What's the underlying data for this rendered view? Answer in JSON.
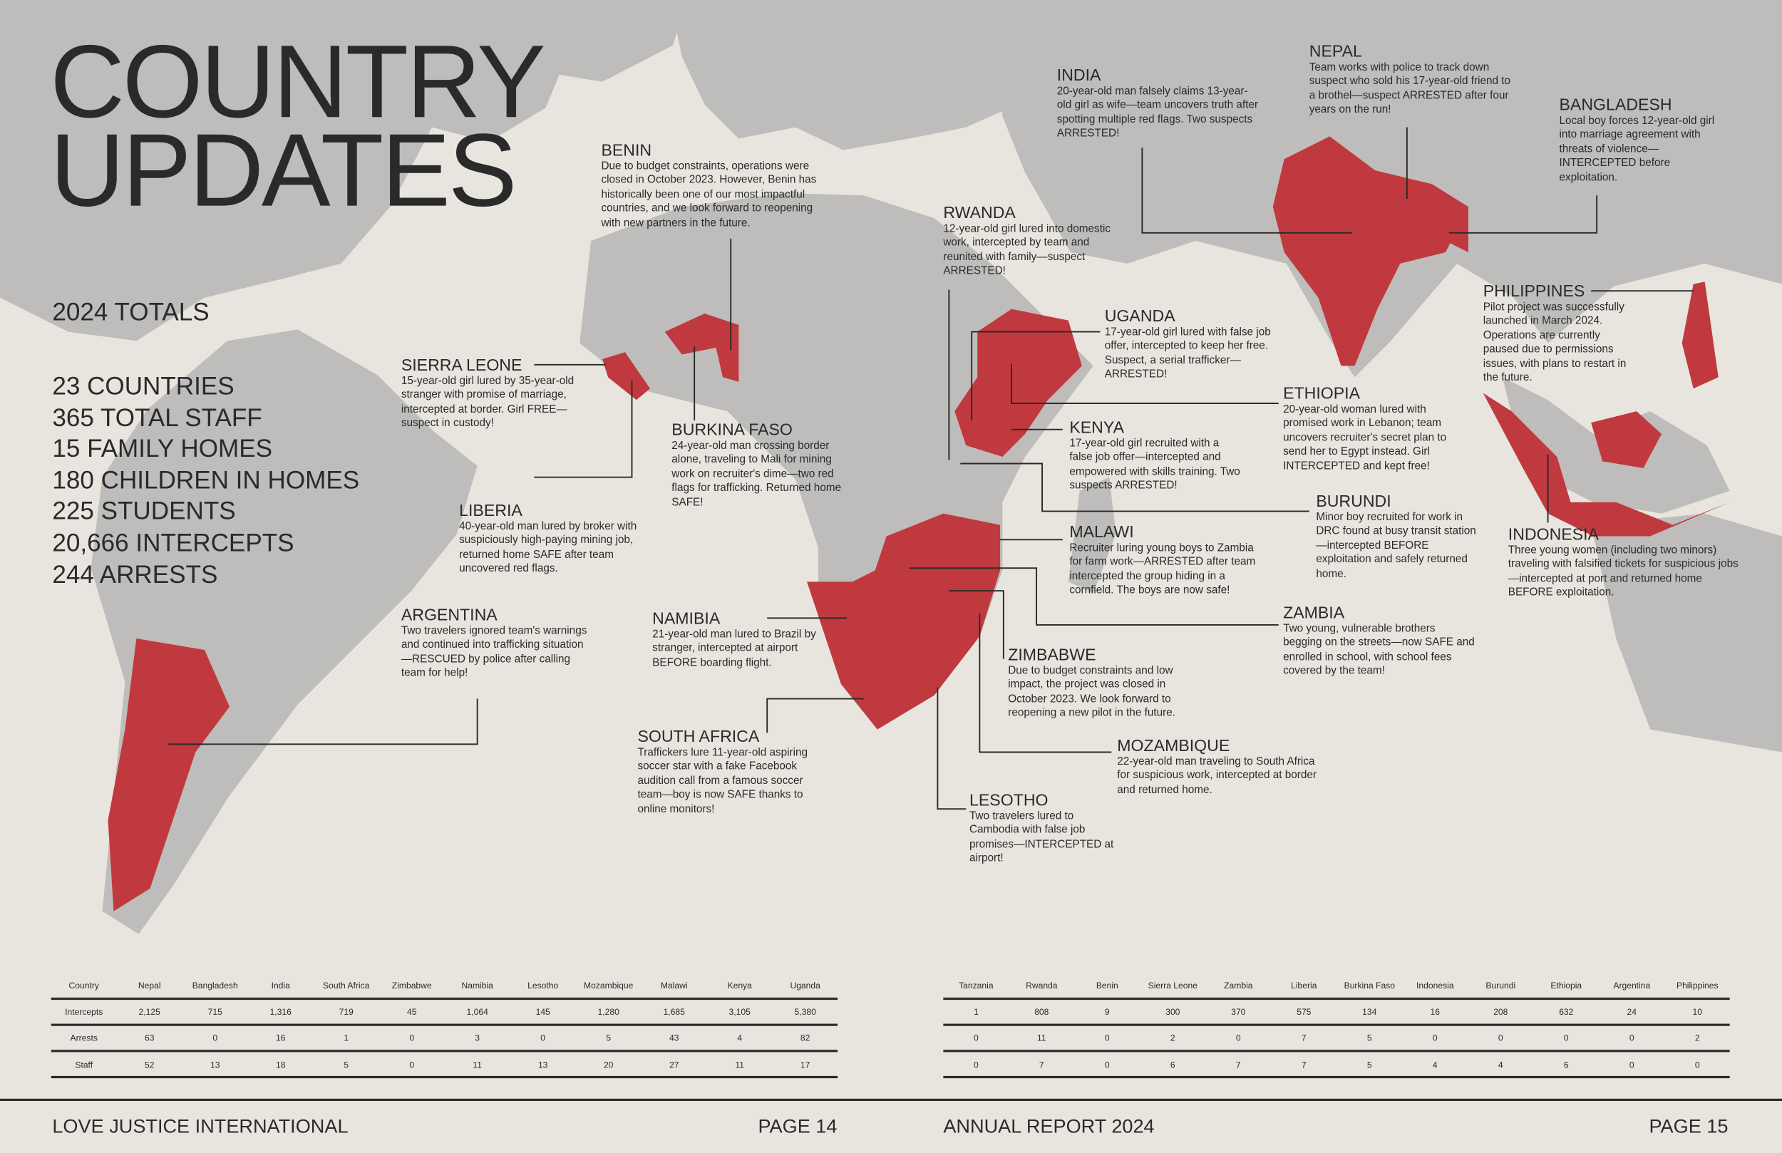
{
  "title_lines": [
    "COUNTRY",
    "UPDATES"
  ],
  "totals": {
    "heading": "2024 TOTALS",
    "items": [
      "23 COUNTRIES",
      "365 TOTAL STAFF",
      "15 FAMILY HOMES",
      "180 CHILDREN IN HOMES",
      "225 STUDENTS",
      "20,666 INTERCEPTS",
      "244 ARRESTS"
    ]
  },
  "callouts": [
    {
      "name": "BENIN",
      "text": "Due to budget constraints, operations were closed in October 2023. However, Benin has historically been one of our most impactful countries, and we look forward to reopening with new partners in the future."
    },
    {
      "name": "INDIA",
      "text": "20-year-old man falsely claims 13-year-old girl as wife—team uncovers truth after spotting multiple red flags. Two suspects ARRESTED!"
    },
    {
      "name": "NEPAL",
      "text": "Team works with police to track down suspect who sold his 17-year-old friend to a brothel—suspect ARRESTED after four years on the run!"
    },
    {
      "name": "BANGLADESH",
      "text": "Local boy forces 12-year-old girl into marriage agreement with threats of violence—INTERCEPTED before exploitation."
    },
    {
      "name": "RWANDA",
      "text": "12-year-old girl lured into domestic work, intercepted by team and reunited with family—suspect ARRESTED!"
    },
    {
      "name": "UGANDA",
      "text": "17-year-old girl lured with false job offer, intercepted to keep her free. Suspect, a serial trafficker—ARRESTED!"
    },
    {
      "name": "PHILIPPINES",
      "text": "Pilot project was successfully launched in March 2024. Operations are currently paused due to permissions issues, with plans to restart in the future."
    },
    {
      "name": "SIERRA LEONE",
      "text": "15-year-old girl lured by 35-year-old stranger with promise of marriage, intercepted at border. Girl FREE—suspect in custody!"
    },
    {
      "name": "ETHIOPIA",
      "text": "20-year-old woman lured with promised work in Lebanon; team uncovers recruiter's secret plan to send her to Egypt instead. Girl INTERCEPTED and kept free!"
    },
    {
      "name": "KENYA",
      "text": "17-year-old girl recruited with a false job offer—intercepted and empowered with skills training. Two suspects ARRESTED!"
    },
    {
      "name": "BURKINA FASO",
      "text": "24-year-old man crossing border alone, traveling to Mali for mining work on recruiter's dime—two red flags for trafficking. Returned home SAFE!"
    },
    {
      "name": "LIBERIA",
      "text": "40-year-old man lured by broker with suspiciously high-paying mining job, returned home SAFE after team uncovered red flags."
    },
    {
      "name": "BURUNDI",
      "text": "Minor boy recruited for work in DRC found at busy transit station—intercepted BEFORE exploitation and safely returned home."
    },
    {
      "name": "MALAWI",
      "text": "Recruiter luring young boys to Zambia for farm work—ARRESTED after team intercepted the group hiding in a cornfield. The boys are now safe!"
    },
    {
      "name": "INDONESIA",
      "text": "Three young women (including two minors) traveling with falsified tickets for suspicious jobs—intercepted at port and returned home BEFORE exploitation."
    },
    {
      "name": "ARGENTINA",
      "text": "Two travelers ignored team's warnings and continued into trafficking situation—RESCUED by police after calling team for help!"
    },
    {
      "name": "NAMIBIA",
      "text": "21-year-old man lured to Brazil by stranger, intercepted at airport BEFORE boarding flight."
    },
    {
      "name": "ZAMBIA",
      "text": "Two young, vulnerable brothers begging on the streets—now SAFE and enrolled in school, with school fees covered by the team!"
    },
    {
      "name": "ZIMBABWE",
      "text": "Due to budget constraints and low impact, the project was closed in October 2023. We look forward to reopening a new pilot in the future."
    },
    {
      "name": "SOUTH AFRICA",
      "text": "Traffickers lure 11-year-old aspiring soccer star with a fake Facebook audition call from a famous soccer team—boy is now SAFE thanks to online monitors!"
    },
    {
      "name": "MOZAMBIQUE",
      "text": "22-year-old man traveling to South Africa for suspicious work, intercepted at border and returned home."
    },
    {
      "name": "LESOTHO",
      "text": "Two travelers lured to Cambodia with false job promises—INTERCEPTED at airport!"
    }
  ],
  "tables": [
    {
      "header": [
        "Country",
        "Nepal",
        "Bangladesh",
        "India",
        "South Africa",
        "Zimbabwe",
        "Namibia",
        "Lesotho",
        "Mozambique",
        "Malawi",
        "Kenya",
        "Uganda"
      ],
      "rows": [
        [
          "Intercepts",
          "2,125",
          "715",
          "1,316",
          "719",
          "45",
          "1,064",
          "145",
          "1,280",
          "1,685",
          "3,105",
          "5,380"
        ],
        [
          "Arrests",
          "63",
          "0",
          "16",
          "1",
          "0",
          "3",
          "0",
          "5",
          "43",
          "4",
          "82"
        ],
        [
          "Staff",
          "52",
          "13",
          "18",
          "5",
          "0",
          "11",
          "13",
          "20",
          "27",
          "11",
          "17"
        ]
      ]
    },
    {
      "header": [
        "Tanzania",
        "Rwanda",
        "Benin",
        "Sierra Leone",
        "Zambia",
        "Liberia",
        "Burkina Faso",
        "Indonesia",
        "Burundi",
        "Ethiopia",
        "Argentina",
        "Philippines"
      ],
      "rows": [
        [
          "1",
          "808",
          "9",
          "300",
          "370",
          "575",
          "134",
          "16",
          "208",
          "632",
          "24",
          "10"
        ],
        [
          "0",
          "11",
          "0",
          "2",
          "0",
          "7",
          "5",
          "0",
          "0",
          "0",
          "0",
          "2"
        ],
        [
          "0",
          "7",
          "0",
          "6",
          "7",
          "7",
          "5",
          "4",
          "4",
          "6",
          "0",
          "0"
        ]
      ]
    }
  ],
  "footer": {
    "left_org": "LOVE JUSTICE INTERNATIONAL",
    "left_page": "PAGE 14",
    "right_report": "ANNUAL REPORT 2024",
    "right_page": "PAGE 15"
  }
}
